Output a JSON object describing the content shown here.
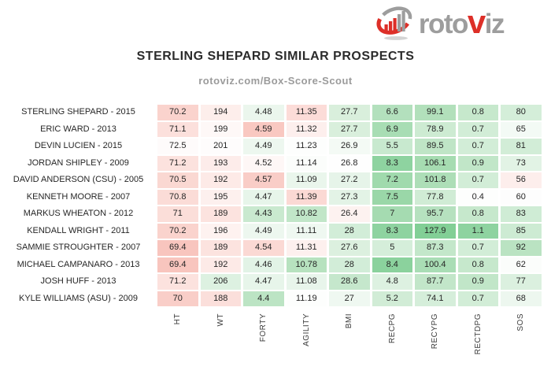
{
  "logo": {
    "text_gray1": "roto",
    "text_red": "v",
    "text_gray2": "iz",
    "icon": "bar-chart-swoosh-icon",
    "red": "#dd2f28",
    "gray": "#9d9d9d"
  },
  "title": "STERLING SHEPARD SIMILAR PROSPECTS",
  "subtitle": "rotoviz.com/Box-Score-Scout",
  "colors": {
    "heat_green_max": "#82CF96",
    "heat_red_max": "#F8C5BE",
    "heat_neutral": "#FEFEFE"
  },
  "chart_data": {
    "type": "table",
    "title": "STERLING SHEPARD SIMILAR PROSPECTS",
    "subtitle": "rotoviz.com/Box-Score-Scout",
    "legend_position": "none",
    "grid": false,
    "columns": [
      "HT",
      "WT",
      "FORTY",
      "AGILITY",
      "BMI",
      "RECPG",
      "RECYPG",
      "RECTDPG",
      "SOS"
    ],
    "rows": [
      {
        "name": "STERLING SHEPARD - 2015",
        "values": [
          "70.2",
          "194",
          "4.48",
          "11.35",
          "27.7",
          "6.6",
          "99.1",
          "0.8",
          "80"
        ],
        "colors": [
          "#FAD3CD",
          "#FDEEEB",
          "#EBF6ED",
          "#FCDCD8",
          "#D9EFDC",
          "#B3E0BD",
          "#B2E0BB",
          "#C6E8CC",
          "#D4EED9"
        ]
      },
      {
        "name": "ERIC WARD - 2013",
        "values": [
          "71.1",
          "199",
          "4.59",
          "11.32",
          "27.7",
          "6.9",
          "78.9",
          "0.7",
          "65"
        ],
        "colors": [
          "#FCE0DC",
          "#FEF8F7",
          "#F9C8C1",
          "#FDEFED",
          "#D9EFDC",
          "#A8DDB4",
          "#CDEBD2",
          "#D2EDD7",
          "#F3FAF5"
        ]
      },
      {
        "name": "DEVIN LUCIEN - 2015",
        "values": [
          "72.5",
          "201",
          "4.49",
          "11.23",
          "26.9",
          "5.5",
          "89.5",
          "0.7",
          "81"
        ],
        "colors": [
          "#FEFBFB",
          "#FEFCFC",
          "#EDF7EF",
          "#FDFEFD",
          "#F4FAF5",
          "#C8E9CF",
          "#BFE5C6",
          "#D2EDD7",
          "#D2EDD7"
        ]
      },
      {
        "name": "JORDAN SHIPLEY - 2009",
        "values": [
          "71.2",
          "193",
          "4.52",
          "11.14",
          "26.8",
          "8.3",
          "106.1",
          "0.9",
          "73"
        ],
        "colors": [
          "#FCE2DE",
          "#FDECEA",
          "#FEF7F6",
          "#FBFDFB",
          "#FEFEFE",
          "#8ED3A0",
          "#A6DCB1",
          "#C1E6C8",
          "#E2F3E5"
        ]
      },
      {
        "name": "DAVID ANDERSON (CSU) - 2005",
        "values": [
          "70.5",
          "192",
          "4.57",
          "11.09",
          "27.2",
          "7.2",
          "101.8",
          "0.7",
          "56"
        ],
        "colors": [
          "#FAD8D2",
          "#FDEAE7",
          "#F9CDC7",
          "#EAF6EC",
          "#E6F4E9",
          "#A0DAAD",
          "#ADDEB7",
          "#D2EDD7",
          "#FDEEEC"
        ]
      },
      {
        "name": "KENNETH MOORE - 2007",
        "values": [
          "70.8",
          "195",
          "4.47",
          "11.39",
          "27.3",
          "7.5",
          "77.8",
          "0.4",
          "60"
        ],
        "colors": [
          "#FBDCD7",
          "#FDF0EE",
          "#E7F5EA",
          "#FBD9D4",
          "#E3F3E6",
          "#9AD7A8",
          "#D0ECD5",
          "#FDFEFD",
          "#FDFDFD"
        ]
      },
      {
        "name": "MARKUS WHEATON - 2012",
        "values": [
          "71",
          "189",
          "4.43",
          "10.82",
          "26.4",
          "7",
          "95.7",
          "0.8",
          "83"
        ],
        "colors": [
          "#FBDED9",
          "#FCE3DF",
          "#C9E9CF",
          "#C1E6C8",
          "#FDF2F0",
          "#A5DBB1",
          "#B6E1BF",
          "#C6E8CC",
          "#CFECD5"
        ]
      },
      {
        "name": "KENDALL WRIGHT - 2011",
        "values": [
          "70.2",
          "196",
          "4.49",
          "11.11",
          "28",
          "8.3",
          "127.9",
          "1.1",
          "85"
        ],
        "colors": [
          "#FAD3CD",
          "#FEF2F0",
          "#EDF7EF",
          "#EFF8F1",
          "#D2EDD8",
          "#8ED3A0",
          "#82CF96",
          "#8ED3A0",
          "#CDEBD3"
        ]
      },
      {
        "name": "SAMMIE STROUGHTER - 2007",
        "values": [
          "69.4",
          "189",
          "4.54",
          "11.31",
          "27.6",
          "5",
          "87.3",
          "0.7",
          "92"
        ],
        "colors": [
          "#F8C5BE",
          "#FCE3DF",
          "#FBD9D4",
          "#FDF0EE",
          "#DCF0DF",
          "#D5EEDA",
          "#C3E7CA",
          "#D2EDD7",
          "#BAE3C2"
        ]
      },
      {
        "name": "MICHAEL CAMPANARO - 2013",
        "values": [
          "69.4",
          "192",
          "4.46",
          "10.78",
          "28",
          "8.4",
          "100.4",
          "0.8",
          "62"
        ],
        "colors": [
          "#F8C5BE",
          "#FDEAE7",
          "#E2F3E6",
          "#B7E2BF",
          "#D2EDD8",
          "#8BD29D",
          "#A9DDB5",
          "#C6E8CC",
          "#FBFDFB"
        ]
      },
      {
        "name": "JOSH HUFF - 2013",
        "values": [
          "71.2",
          "206",
          "4.47",
          "11.08",
          "28.6",
          "4.8",
          "87.7",
          "0.9",
          "77"
        ],
        "colors": [
          "#FCE2DE",
          "#DDF1E1",
          "#E7F5EA",
          "#E8F5EB",
          "#C5E7CC",
          "#DDF1E1",
          "#C2E6C9",
          "#C1E6C8",
          "#DBF0DF"
        ]
      },
      {
        "name": "KYLE WILLIAMS (ASU) - 2009",
        "values": [
          "70",
          "188",
          "4.4",
          "11.19",
          "27",
          "5.2",
          "74.1",
          "0.7",
          "68"
        ],
        "colors": [
          "#F9CEC8",
          "#FBDFDB",
          "#BCE4C4",
          "#FDFEFD",
          "#EFF8F1",
          "#D1ECD6",
          "#D5EEDA",
          "#D2EDD7",
          "#EDF7EF"
        ]
      }
    ]
  }
}
